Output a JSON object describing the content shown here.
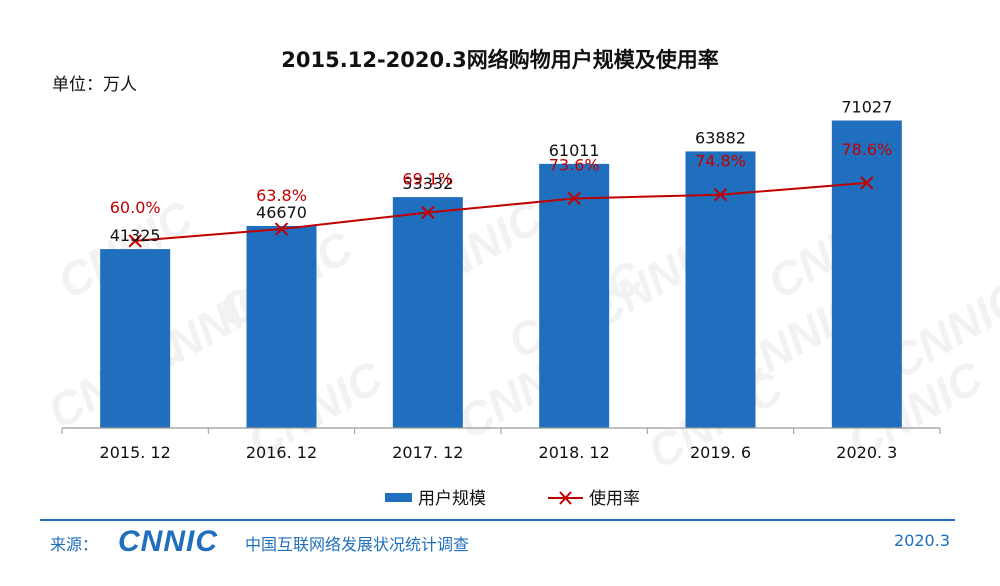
{
  "header": {
    "title": "2015.12-2020.3网络购物用户规模及使用率",
    "unit": "单位：万人"
  },
  "footer": {
    "source_label": "来源：",
    "logo_text": "CNNIC",
    "org": "中国互联网络发展状况统计调查",
    "date": "2020.3"
  },
  "watermark": "CNNIC",
  "colors": {
    "bar": "#1f6fbe",
    "line": "#c00000",
    "rate_label": "#c00000",
    "footer": "#1f6fbe"
  },
  "chart_data": {
    "type": "bar",
    "title": "2015.12-2020.3网络购物用户规模及使用率",
    "categories": [
      "2015. 12",
      "2016. 12",
      "2017. 12",
      "2018. 12",
      "2019. 6",
      "2020. 3"
    ],
    "series": [
      {
        "name": "用户规模",
        "type": "bar",
        "values": [
          41325,
          46670,
          53332,
          61011,
          63882,
          71027
        ]
      },
      {
        "name": "使用率",
        "type": "line",
        "values": [
          60.0,
          63.8,
          69.1,
          73.6,
          74.8,
          78.6
        ],
        "labels": [
          "60.0%",
          "63.8%",
          "69.1%",
          "73.6%",
          "74.8%",
          "78.6%"
        ]
      }
    ],
    "legend_position": "bottom",
    "grid": false
  }
}
